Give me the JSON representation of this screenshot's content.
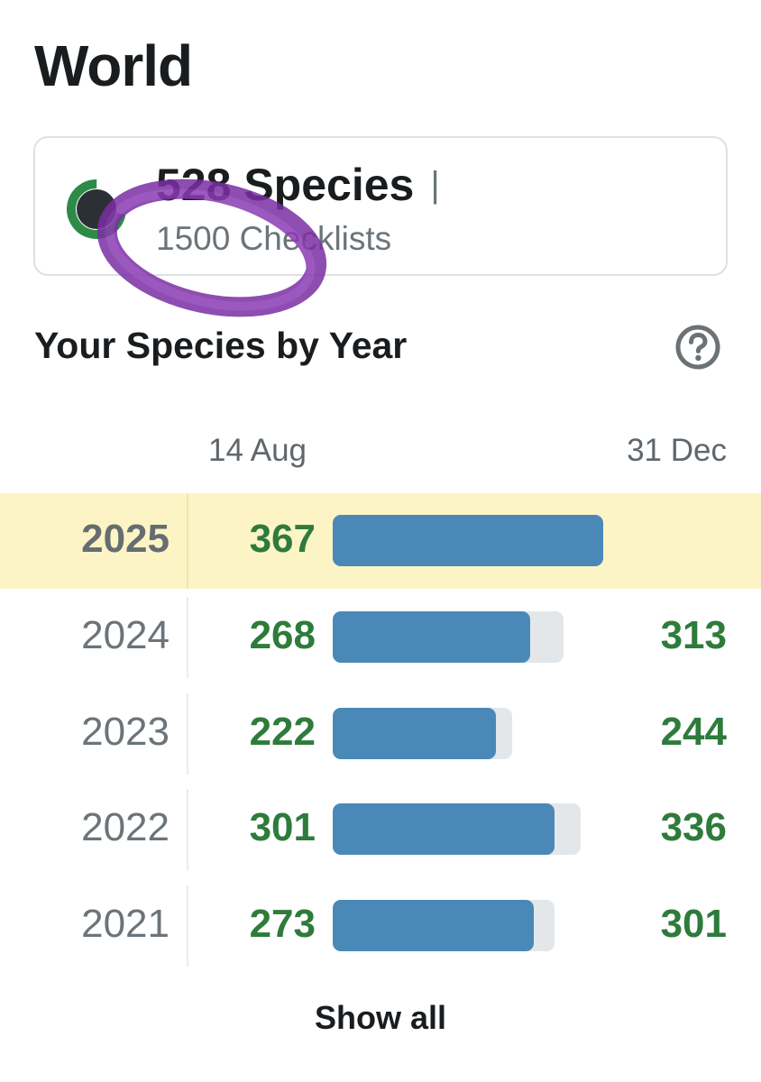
{
  "header": {
    "title": "World"
  },
  "summary": {
    "species": "528 Species",
    "separator": "|",
    "checklists": "1500 Checklists",
    "ring_progress": 0.72,
    "ring_color": "#2e8b47"
  },
  "species_by_year": {
    "title": "Your Species by Year",
    "help_icon": "question-circle-icon",
    "date_start": "14 Aug",
    "date_end": "31 Dec",
    "rows": [
      {
        "year": "2025",
        "to_date": "367",
        "total": "",
        "current": true
      },
      {
        "year": "2024",
        "to_date": "268",
        "total": "313",
        "current": false
      },
      {
        "year": "2023",
        "to_date": "222",
        "total": "244",
        "current": false
      },
      {
        "year": "2022",
        "to_date": "301",
        "total": "336",
        "current": false
      },
      {
        "year": "2021",
        "to_date": "273",
        "total": "301",
        "current": false
      }
    ],
    "show_all": "Show all"
  },
  "colors": {
    "count_green": "#2e7b3c",
    "bar_blue": "#4a89b7",
    "bar_track": "#e3e7ea",
    "current_row_bg": "#fdf4c5",
    "annotation_purple": "#7b2ea3"
  }
}
